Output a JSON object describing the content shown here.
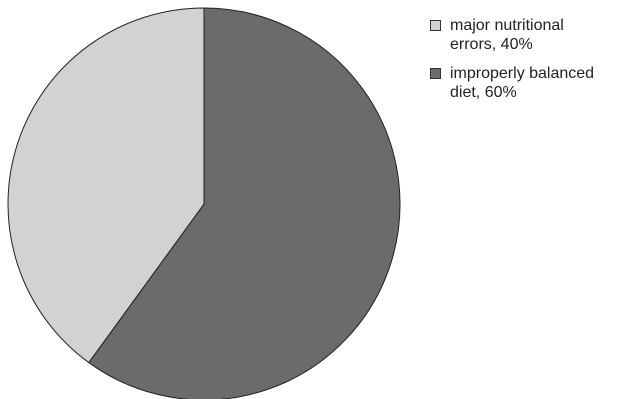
{
  "chart_data": {
    "type": "pie",
    "title": "",
    "slices": [
      {
        "label_lines": [
          "improperly balanced",
          "diet, 60%"
        ],
        "value": 60,
        "color": "#6b6b6e"
      },
      {
        "label_lines": [
          "major nutritional",
          "errors, 40%"
        ],
        "value": 40,
        "color": "#d1d2d4"
      }
    ],
    "legend": {
      "placement": "top-right",
      "items": [
        {
          "lines": [
            "major nutritional",
            "errors, 40%"
          ],
          "color": "#d1d2d4"
        },
        {
          "lines": [
            "improperly balanced",
            "diet, 60%"
          ],
          "color": "#6b6b6e"
        }
      ]
    },
    "stroke_color": "#222222"
  }
}
